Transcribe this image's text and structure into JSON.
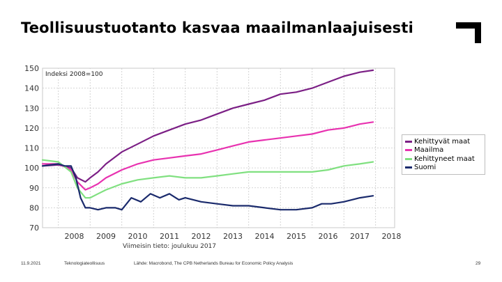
{
  "slide": {
    "title": "Teollisuustuotanto kasvaa maailmanlaajuisesti",
    "footer": {
      "date": "11.9.2021",
      "organization": "Teknologiateollisuus",
      "source": "Lähde: Macrobond, The CPB Netherlands Bureau for Economic Policy Analysis",
      "page_number": "29"
    }
  },
  "chart_data": {
    "type": "line",
    "index_label": "Indeksi 2008=100",
    "note": "Viimeisin tieto: joulukuu 2017",
    "ylim": [
      70,
      150
    ],
    "yticks": [
      70,
      80,
      90,
      100,
      110,
      120,
      130,
      140,
      150
    ],
    "xlim": [
      2007.5,
      2018.6
    ],
    "xticks": [
      "2008",
      "2009",
      "2010",
      "2011",
      "2012",
      "2013",
      "2014",
      "2015",
      "2016",
      "2017",
      "2018"
    ],
    "grid": true,
    "legend_position": "right",
    "series": [
      {
        "name": "Kehittyvät maat",
        "color": "#7b1f85",
        "x": [
          2007.5,
          2008.0,
          2008.4,
          2008.6,
          2008.85,
          2009.0,
          2009.25,
          2009.5,
          2010.0,
          2010.5,
          2011.0,
          2011.5,
          2012.0,
          2012.5,
          2013.0,
          2013.5,
          2014.0,
          2014.5,
          2015.0,
          2015.5,
          2016.0,
          2016.5,
          2017.0,
          2017.5,
          2017.92
        ],
        "y": [
          101,
          101.5,
          100,
          95,
          93,
          95,
          98,
          102,
          108,
          112,
          116,
          119,
          122,
          124,
          127,
          130,
          132,
          134,
          137,
          138,
          140,
          143,
          146,
          148,
          149
        ]
      },
      {
        "name": "Maailma",
        "color": "#e832b0",
        "x": [
          2007.5,
          2008.0,
          2008.4,
          2008.6,
          2008.85,
          2009.0,
          2009.25,
          2009.5,
          2010.0,
          2010.5,
          2011.0,
          2011.5,
          2012.0,
          2012.5,
          2013.0,
          2013.5,
          2014.0,
          2014.5,
          2015.0,
          2015.5,
          2016.0,
          2016.5,
          2017.0,
          2017.5,
          2017.92
        ],
        "y": [
          102,
          102,
          99,
          93,
          89,
          90,
          92,
          95,
          99,
          102,
          104,
          105,
          106,
          107,
          109,
          111,
          113,
          114,
          115,
          116,
          117,
          119,
          120,
          122,
          123
        ]
      },
      {
        "name": "Kehittyneet maat",
        "color": "#80e080",
        "x": [
          2007.5,
          2008.0,
          2008.4,
          2008.6,
          2008.85,
          2009.0,
          2009.25,
          2009.5,
          2010.0,
          2010.5,
          2011.0,
          2011.5,
          2012.0,
          2012.5,
          2013.0,
          2013.5,
          2014.0,
          2014.5,
          2015.0,
          2015.5,
          2016.0,
          2016.5,
          2017.0,
          2017.5,
          2017.92
        ],
        "y": [
          104,
          103,
          98,
          90,
          85,
          85,
          87,
          89,
          92,
          94,
          95,
          96,
          95,
          95,
          96,
          97,
          98,
          98,
          98,
          98,
          98,
          99,
          101,
          102,
          103
        ]
      },
      {
        "name": "Suomi",
        "color": "#1a2a6c",
        "x": [
          2007.5,
          2008.0,
          2008.2,
          2008.4,
          2008.55,
          2008.7,
          2008.85,
          2009.0,
          2009.25,
          2009.5,
          2009.8,
          2010.0,
          2010.3,
          2010.6,
          2010.9,
          2011.2,
          2011.5,
          2011.8,
          2012.0,
          2012.5,
          2013.0,
          2013.5,
          2014.0,
          2014.5,
          2015.0,
          2015.5,
          2016.0,
          2016.3,
          2016.6,
          2017.0,
          2017.5,
          2017.92
        ],
        "y": [
          101,
          102,
          101,
          101,
          95,
          85,
          80,
          80,
          79,
          80,
          80,
          79,
          85,
          83,
          87,
          85,
          87,
          84,
          85,
          83,
          82,
          81,
          81,
          80,
          79,
          79,
          80,
          82,
          82,
          83,
          85,
          86
        ]
      }
    ]
  }
}
